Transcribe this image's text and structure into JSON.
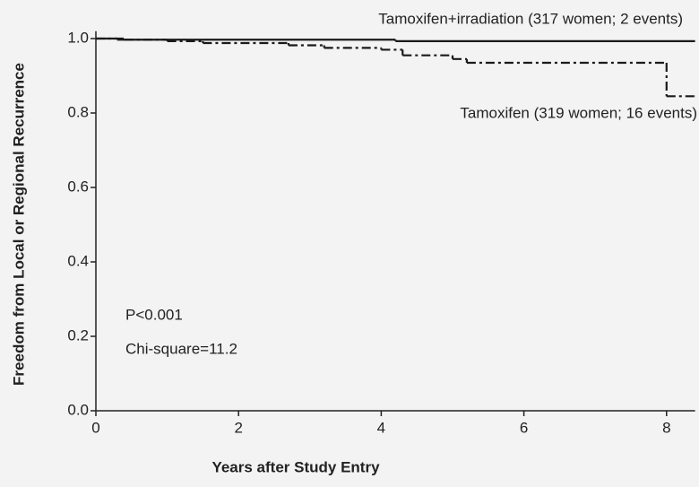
{
  "chart_data": {
    "type": "line",
    "x_label": "Years after Study Entry",
    "y_label": "Freedom from Local or Regional Recurrence",
    "xlim": [
      0,
      8.4
    ],
    "ylim": [
      0,
      1.02
    ],
    "xticks": [
      0,
      2,
      4,
      6,
      8
    ],
    "yticks": [
      {
        "value": 0,
        "label": "0.0"
      },
      0.2,
      0.4,
      0.6,
      0.8,
      {
        "value": 1,
        "label": "1.0"
      }
    ],
    "annotations": [
      "P<0.001",
      "Chi-square=11.2"
    ],
    "series": [
      {
        "name": "Tamoxifen+irradiation (317 women; 2 events)",
        "color": "#1a1a1a",
        "dash": "solid",
        "x": [
          0,
          0.3,
          4.2,
          8.4
        ],
        "values": [
          1.0,
          0.997,
          0.993,
          0.993
        ]
      },
      {
        "name": "Tamoxifen (319 women; 16 events)",
        "color": "#1a1a1a",
        "dash": "dashdot",
        "x": [
          0,
          0.4,
          1.0,
          1.5,
          2.7,
          3.2,
          4.0,
          4.3,
          5.0,
          5.2,
          8.0,
          8.4
        ],
        "values": [
          1.0,
          0.997,
          0.993,
          0.988,
          0.982,
          0.975,
          0.97,
          0.955,
          0.945,
          0.935,
          0.845,
          0.845
        ]
      }
    ]
  }
}
